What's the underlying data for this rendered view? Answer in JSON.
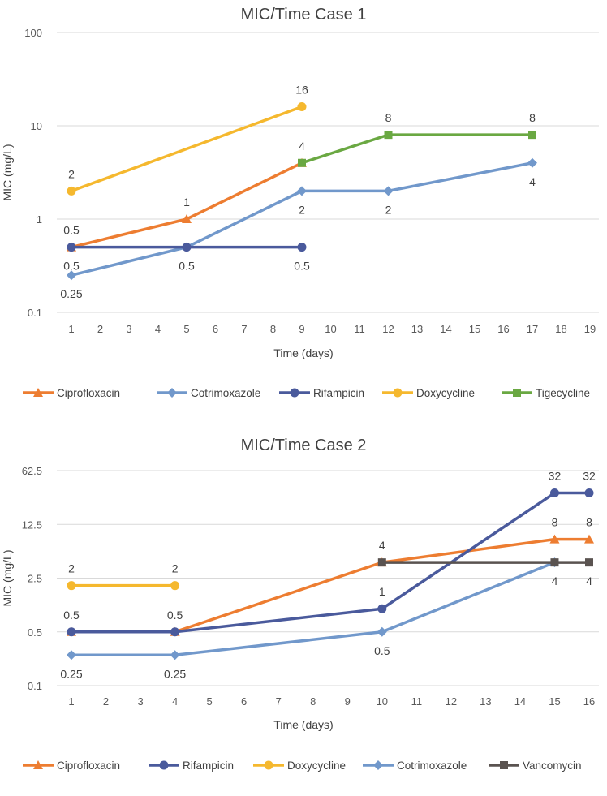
{
  "chart_data": [
    {
      "type": "line",
      "title": "MIC/Time Case 1",
      "xlabel": "Time (days)",
      "ylabel": "MIC (mg/L)",
      "yscale": "log",
      "ylim": [
        0.1,
        100
      ],
      "yticks": [
        0.1,
        1,
        10,
        100
      ],
      "ytick_labels": [
        "0.1",
        "1",
        "10",
        "100"
      ],
      "xlim": [
        1,
        19
      ],
      "xticks": [
        1,
        2,
        3,
        4,
        5,
        6,
        7,
        8,
        9,
        10,
        11,
        12,
        13,
        14,
        15,
        16,
        17,
        18,
        19
      ],
      "legend_position": "bottom",
      "series": [
        {
          "name": "Ciprofloxacin",
          "color": "#ED7D31",
          "marker": "triangle",
          "x": [
            1,
            5,
            9
          ],
          "values": [
            0.5,
            1,
            4
          ],
          "labels": [
            "0.5",
            "1",
            "4"
          ],
          "label_pos": [
            "above",
            "above",
            "above"
          ]
        },
        {
          "name": "Cotrimoxazole",
          "color": "#7198CB",
          "marker": "diamond",
          "x": [
            1,
            5,
            9,
            12,
            17
          ],
          "values": [
            0.25,
            0.5,
            2,
            2,
            4
          ],
          "labels": [
            "0.25",
            "0.5",
            "2",
            "2",
            "4"
          ],
          "label_pos": [
            "below",
            "below",
            "below",
            "below",
            "below"
          ]
        },
        {
          "name": "Rifampicin",
          "color": "#4A5A9C",
          "marker": "circle",
          "x": [
            1,
            5,
            9
          ],
          "values": [
            0.5,
            0.5,
            0.5
          ],
          "labels": [
            "0.5",
            "",
            "0.5"
          ],
          "label_pos": [
            "below",
            "below",
            "below"
          ]
        },
        {
          "name": "Doxycycline",
          "color": "#F5B82E",
          "marker": "circle",
          "x": [
            1,
            9
          ],
          "values": [
            2,
            16
          ],
          "labels": [
            "2",
            "16"
          ],
          "label_pos": [
            "above",
            "above"
          ]
        },
        {
          "name": "Tigecycline",
          "color": "#6AA842",
          "marker": "square",
          "x": [
            9,
            12,
            17
          ],
          "values": [
            4,
            8,
            8
          ],
          "labels": [
            "",
            "8",
            "8"
          ],
          "label_pos": [
            "above",
            "above",
            "above"
          ]
        }
      ]
    },
    {
      "type": "line",
      "title": "MIC/Time Case 2",
      "xlabel": "Time (days)",
      "ylabel": "MIC (mg/L)",
      "yscale": "log",
      "ylim": [
        0.1,
        62.5
      ],
      "yticks": [
        0.1,
        0.5,
        2.5,
        12.5,
        62.5
      ],
      "ytick_labels": [
        "0.1",
        "0.5",
        "2.5",
        "12.5",
        "62.5"
      ],
      "xlim": [
        1,
        16
      ],
      "xticks": [
        1,
        2,
        3,
        4,
        5,
        6,
        7,
        8,
        9,
        10,
        11,
        12,
        13,
        14,
        15,
        16
      ],
      "legend_position": "bottom",
      "series": [
        {
          "name": "Ciprofloxacin",
          "color": "#ED7D31",
          "marker": "triangle",
          "x": [
            1,
            4,
            10,
            15,
            16
          ],
          "values": [
            0.5,
            0.5,
            4,
            8,
            8
          ],
          "labels": [
            "",
            "",
            "4",
            "8",
            "8"
          ],
          "label_pos": [
            "above",
            "above",
            "above",
            "above",
            "above"
          ]
        },
        {
          "name": "Rifampicin",
          "color": "#4A5A9C",
          "marker": "circle",
          "x": [
            1,
            4,
            10,
            15,
            16
          ],
          "values": [
            0.5,
            0.5,
            1,
            32,
            32
          ],
          "labels": [
            "0.5",
            "0.5",
            "1",
            "32",
            "32"
          ],
          "label_pos": [
            "above",
            "above",
            "above",
            "above",
            "above"
          ]
        },
        {
          "name": "Doxycycline",
          "color": "#F5B82E",
          "marker": "circle",
          "x": [
            1,
            4
          ],
          "values": [
            2,
            2
          ],
          "labels": [
            "2",
            "2"
          ],
          "label_pos": [
            "above",
            "above"
          ]
        },
        {
          "name": "Cotrimoxazole",
          "color": "#7198CB",
          "marker": "diamond",
          "x": [
            1,
            4,
            10,
            15
          ],
          "values": [
            0.25,
            0.25,
            0.5,
            4
          ],
          "labels": [
            "0.25",
            "0.25",
            "0.5",
            ""
          ],
          "label_pos": [
            "below",
            "below",
            "below",
            "below"
          ]
        },
        {
          "name": "Vancomycin",
          "color": "#5A5350",
          "marker": "square",
          "x": [
            10,
            15,
            16
          ],
          "values": [
            4,
            4,
            4
          ],
          "labels": [
            "",
            "4",
            "4"
          ],
          "label_pos": [
            "above",
            "below",
            "below"
          ]
        }
      ]
    }
  ]
}
